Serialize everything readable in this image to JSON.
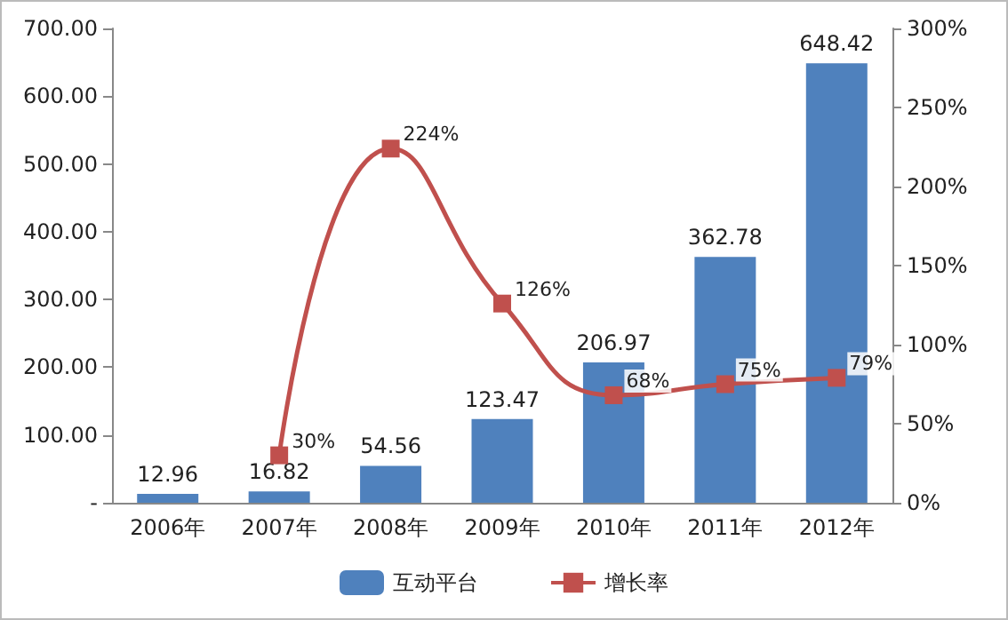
{
  "chart_data": {
    "type": "bar",
    "categories": [
      "2006年",
      "2007年",
      "2008年",
      "2009年",
      "2010年",
      "2011年",
      "2012年"
    ],
    "series": [
      {
        "name": "互动平台",
        "color": "#4f81bd",
        "values": [
          12.96,
          16.82,
          54.56,
          123.47,
          206.97,
          362.78,
          648.42
        ],
        "value_labels": [
          "12.96",
          "16.82",
          "54.56",
          "123.47",
          "206.97",
          "362.78",
          "648.42"
        ]
      },
      {
        "name": "增长率",
        "type": "line",
        "axis": "y2",
        "color": "#c0504d",
        "marker": "square",
        "values": [
          null,
          30,
          224,
          126,
          68,
          75,
          79
        ],
        "value_labels": [
          null,
          "30%",
          "224%",
          "126%",
          "68%",
          "75%",
          "79%"
        ]
      }
    ],
    "ylim": [
      0,
      700
    ],
    "yticks": [
      {
        "value": 0,
        "label": "-"
      },
      {
        "value": 100,
        "label": "100.00"
      },
      {
        "value": 200,
        "label": "200.00"
      },
      {
        "value": 300,
        "label": "300.00"
      },
      {
        "value": 400,
        "label": "400.00"
      },
      {
        "value": 500,
        "label": "500.00"
      },
      {
        "value": 600,
        "label": "600.00"
      },
      {
        "value": 700,
        "label": "700.00"
      }
    ],
    "y2lim": [
      0,
      300
    ],
    "y2ticks": [
      {
        "value": 0,
        "label": "0%"
      },
      {
        "value": 50,
        "label": "50%"
      },
      {
        "value": 100,
        "label": "100%"
      },
      {
        "value": 150,
        "label": "150%"
      },
      {
        "value": 200,
        "label": "200%"
      },
      {
        "value": 250,
        "label": "250%"
      },
      {
        "value": 300,
        "label": "300%"
      }
    ],
    "grid": false,
    "legend": "bottom"
  }
}
